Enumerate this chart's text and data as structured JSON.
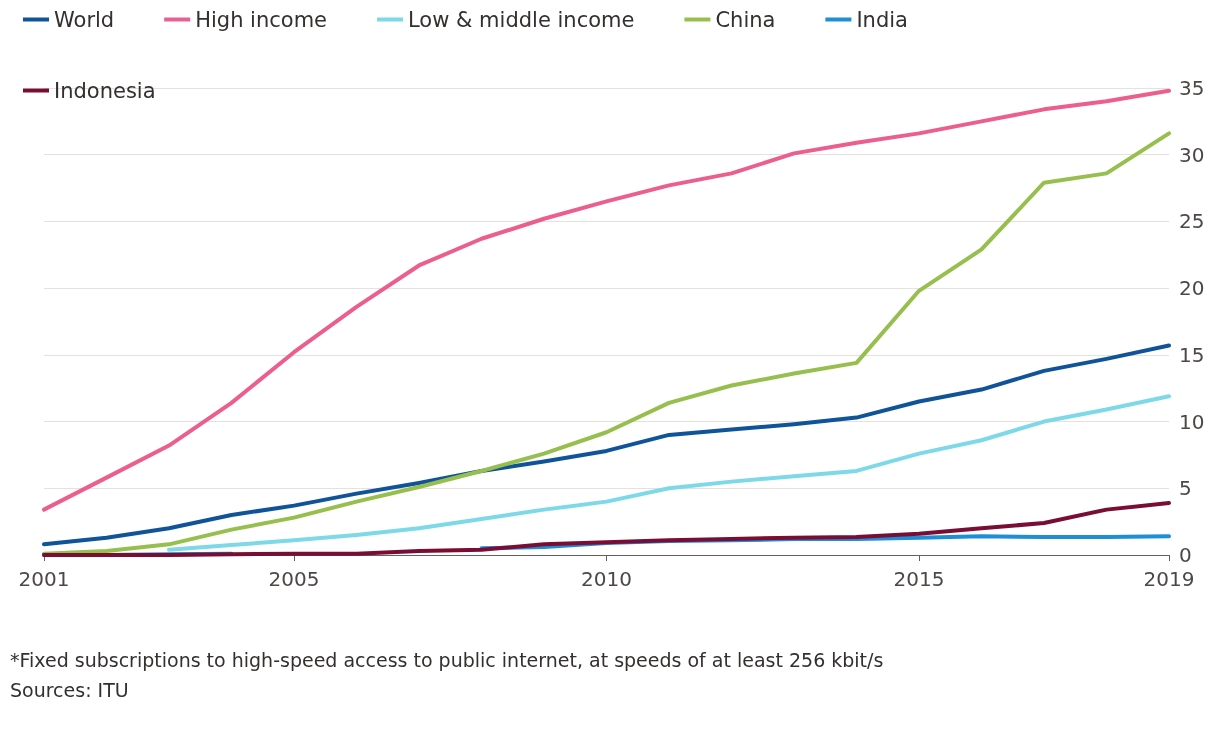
{
  "chart_data": {
    "type": "line",
    "x": [
      2001,
      2002,
      2003,
      2004,
      2005,
      2006,
      2007,
      2008,
      2009,
      2010,
      2011,
      2012,
      2013,
      2014,
      2015,
      2016,
      2017,
      2018,
      2019
    ],
    "series": [
      {
        "name": "World",
        "color": "#0f5499",
        "values": [
          0.8,
          1.3,
          2.0,
          3.0,
          3.7,
          4.6,
          5.4,
          6.3,
          7.0,
          7.8,
          9.0,
          9.4,
          9.8,
          10.3,
          11.5,
          12.4,
          13.8,
          14.7,
          15.7
        ]
      },
      {
        "name": "High income",
        "color": "#eb5e8d",
        "values": [
          3.4,
          5.8,
          8.2,
          11.4,
          15.2,
          18.6,
          21.7,
          23.7,
          25.2,
          26.5,
          27.7,
          28.6,
          30.1,
          30.9,
          31.6,
          32.5,
          33.4,
          34.0,
          34.8
        ]
      },
      {
        "name": "Low & middle income",
        "color": "#7dd9e8",
        "values": [
          null,
          null,
          0.4,
          0.75,
          1.1,
          1.5,
          2.0,
          2.7,
          3.4,
          4.0,
          5.0,
          5.5,
          5.9,
          6.3,
          7.6,
          8.6,
          10.0,
          10.9,
          11.9
        ]
      },
      {
        "name": "China",
        "color": "#96bf4e",
        "values": [
          0.1,
          0.3,
          0.8,
          1.9,
          2.8,
          4.0,
          5.1,
          6.3,
          7.6,
          9.2,
          11.4,
          12.7,
          13.6,
          14.4,
          19.8,
          22.9,
          27.9,
          28.6,
          31.6
        ]
      },
      {
        "name": "India",
        "color": "#1e8ed6",
        "values": [
          0,
          0,
          0.05,
          0.1,
          null,
          null,
          null,
          0.5,
          0.6,
          0.9,
          1.05,
          1.1,
          1.2,
          1.2,
          1.3,
          1.4,
          1.35,
          1.35,
          1.4
        ]
      },
      {
        "name": "Indonesia",
        "color": "#790d34",
        "values": [
          0,
          0,
          0,
          0.05,
          0.1,
          0.1,
          0.3,
          0.4,
          0.8,
          0.95,
          1.1,
          1.2,
          1.3,
          1.35,
          1.6,
          2.0,
          2.4,
          3.4,
          3.9
        ]
      }
    ],
    "xlim": [
      2001,
      2019
    ],
    "xticks": [
      2001,
      2005,
      2010,
      2015,
      2019
    ],
    "ylim": [
      0,
      35
    ],
    "yticks": [
      0,
      5,
      10,
      15,
      20,
      25,
      30,
      35
    ],
    "grid": "y",
    "legend": "top left",
    "marker": "none",
    "line_style": "solid",
    "annotations": [
      "*Fixed subscriptions to high-speed access to public internet, at speeds of at least 256 kbit/s",
      "Sources: ITU"
    ]
  }
}
